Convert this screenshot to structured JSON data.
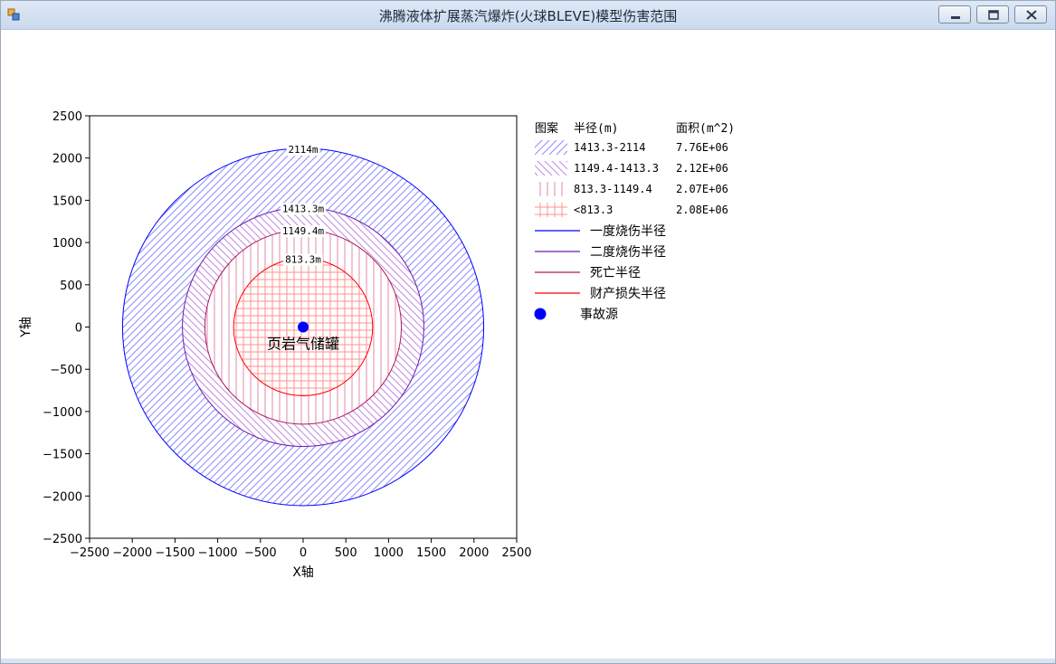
{
  "window": {
    "title": "沸腾液体扩展蒸汽爆炸(火球BLEVE)模型伤害范围",
    "icons": [
      "app-icon",
      "minimize-icon",
      "maximize-icon",
      "close-icon"
    ]
  },
  "chart_data": {
    "type": "contour-circles",
    "xlabel": "X轴",
    "ylabel": "Y轴",
    "xlim": [
      -2500,
      2500
    ],
    "ylim": [
      -2500,
      2500
    ],
    "xticks": [
      -2500,
      -2000,
      -1500,
      -1000,
      -500,
      0,
      500,
      1000,
      1500,
      2000,
      2500
    ],
    "yticks": [
      2500,
      2000,
      1500,
      1000,
      500,
      0,
      -500,
      -1000,
      -1500,
      -2000,
      -2500
    ],
    "grid": false,
    "legend_placement": "right",
    "source": {
      "x": 0,
      "y": 0,
      "label": "页岩气储罐",
      "color": "#0000ff"
    },
    "circles": [
      {
        "radius": 2114,
        "label": "2114m",
        "color": "#0000ff",
        "hatch": "diag-right",
        "hatch_color": "#8c8cff"
      },
      {
        "radius": 1413.3,
        "label": "1413.3m",
        "color": "#6a1cb0",
        "hatch": "diag-left",
        "hatch_color": "#c08ae0"
      },
      {
        "radius": 1149.4,
        "label": "1149.4m",
        "color": "#b0185a",
        "hatch": "vertical",
        "hatch_color": "#e28aa8"
      },
      {
        "radius": 813.3,
        "label": "813.3m",
        "color": "#ff0000",
        "hatch": "grid",
        "hatch_color": "#ff9090"
      }
    ],
    "legend": {
      "headers": [
        "图案",
        "半径(m)",
        "面积(m^2)"
      ],
      "rows": [
        {
          "hatch": "diag-right",
          "color": "#8c8cff",
          "range": "1413.3-2114",
          "area": "7.76E+06"
        },
        {
          "hatch": "diag-left",
          "color": "#c08ae0",
          "range": "1149.4-1413.3",
          "area": "2.12E+06"
        },
        {
          "hatch": "vertical",
          "color": "#e28aa8",
          "range": "813.3-1149.4",
          "area": "2.07E+06"
        },
        {
          "hatch": "grid",
          "color": "#ff9090",
          "range": "<813.3",
          "area": "2.08E+06"
        }
      ],
      "lines": [
        {
          "label": "一度烧伤半径",
          "color": "#0000ff"
        },
        {
          "label": "二度烧伤半径",
          "color": "#6a1cb0"
        },
        {
          "label": "死亡半径",
          "color": "#b0185a"
        },
        {
          "label": "财产损失半径",
          "color": "#ff0000"
        }
      ],
      "marker": {
        "label": "事故源",
        "color": "#0000ff"
      }
    }
  }
}
